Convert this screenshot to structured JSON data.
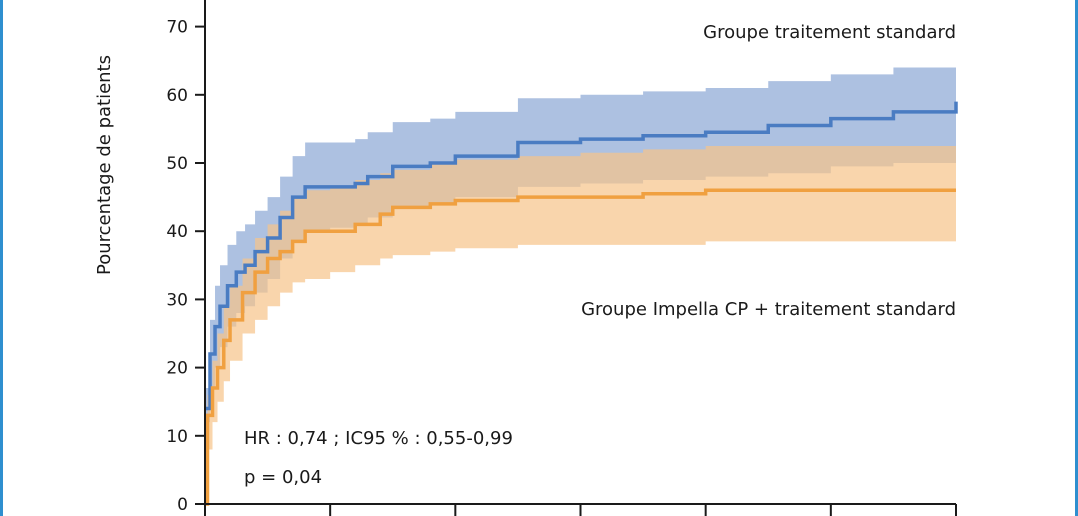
{
  "chart_data": {
    "type": "line",
    "title": "",
    "xlabel": "",
    "ylabel": "Pourcentage de patients",
    "ylim": [
      0,
      75
    ],
    "xlim": [
      0,
      6
    ],
    "y_ticks": [
      0,
      10,
      20,
      30,
      40,
      50,
      60,
      70
    ],
    "x_tick_count": 7,
    "grid": false,
    "colors": {
      "standard_line": "#4a7cc2",
      "standard_band": "#9fb6dc",
      "impella_line": "#f0a040",
      "impella_band": "#f6c389",
      "axis": "#1a1a1a",
      "frame": "#2f8fcf"
    },
    "series": [
      {
        "name": "Groupe traitement standard",
        "x": [
          0,
          0.04,
          0.08,
          0.12,
          0.18,
          0.25,
          0.32,
          0.4,
          0.5,
          0.6,
          0.7,
          0.8,
          1.0,
          1.2,
          1.3,
          1.5,
          1.8,
          2.0,
          2.5,
          3.0,
          3.5,
          4.0,
          4.5,
          5.0,
          5.5,
          6.0
        ],
        "y": [
          14,
          22,
          26,
          29,
          32,
          34,
          35,
          37,
          39,
          42,
          45,
          46.5,
          46.5,
          47,
          48,
          49.5,
          50,
          51,
          53,
          53.5,
          54,
          54.5,
          55.5,
          56.5,
          57.5,
          59
        ],
        "lower": [
          12,
          17,
          20,
          23,
          26,
          28,
          29,
          31,
          33,
          36,
          38.5,
          40,
          40.5,
          41,
          42,
          43.5,
          44,
          45,
          46.5,
          47,
          47.5,
          48,
          48.5,
          49.5,
          50,
          52
        ],
        "upper": [
          17,
          27,
          32,
          35,
          38,
          40,
          41,
          43,
          45,
          48,
          51,
          53,
          53,
          53.5,
          54.5,
          56,
          56.5,
          57.5,
          59.5,
          60,
          60.5,
          61,
          62,
          63,
          64,
          66
        ]
      },
      {
        "name": "Groupe Impella CP + traitement standard",
        "x": [
          0,
          0.02,
          0.06,
          0.1,
          0.15,
          0.2,
          0.3,
          0.4,
          0.5,
          0.6,
          0.7,
          0.8,
          1.0,
          1.2,
          1.4,
          1.5,
          1.8,
          2.0,
          2.5,
          3.0,
          3.5,
          4.0,
          4.5,
          5.0,
          5.5,
          6.0
        ],
        "y": [
          0,
          13,
          17,
          20,
          24,
          27,
          31,
          34,
          36,
          37,
          38.5,
          40,
          40,
          41,
          42.5,
          43.5,
          44,
          44.5,
          45,
          45,
          45.5,
          46,
          46,
          46,
          46,
          46
        ],
        "lower": [
          0,
          8,
          12,
          15,
          18,
          21,
          25,
          27,
          29,
          31,
          32.5,
          33,
          34,
          35,
          36,
          36.5,
          37,
          37.5,
          38,
          38,
          38,
          38.5,
          38.5,
          38.5,
          38.5,
          38.5
        ],
        "upper": [
          2,
          16,
          21,
          25,
          29,
          32,
          36,
          39,
          41,
          43,
          45,
          46,
          46.5,
          47.5,
          48.5,
          49,
          50,
          50.5,
          51,
          51.5,
          52,
          52.5,
          52.5,
          52.5,
          52.5,
          52.5
        ]
      }
    ],
    "annotations": {
      "hr": "HR : 0,74 ; IC95 % : 0,55-0,99",
      "p": "p = 0,04"
    }
  }
}
